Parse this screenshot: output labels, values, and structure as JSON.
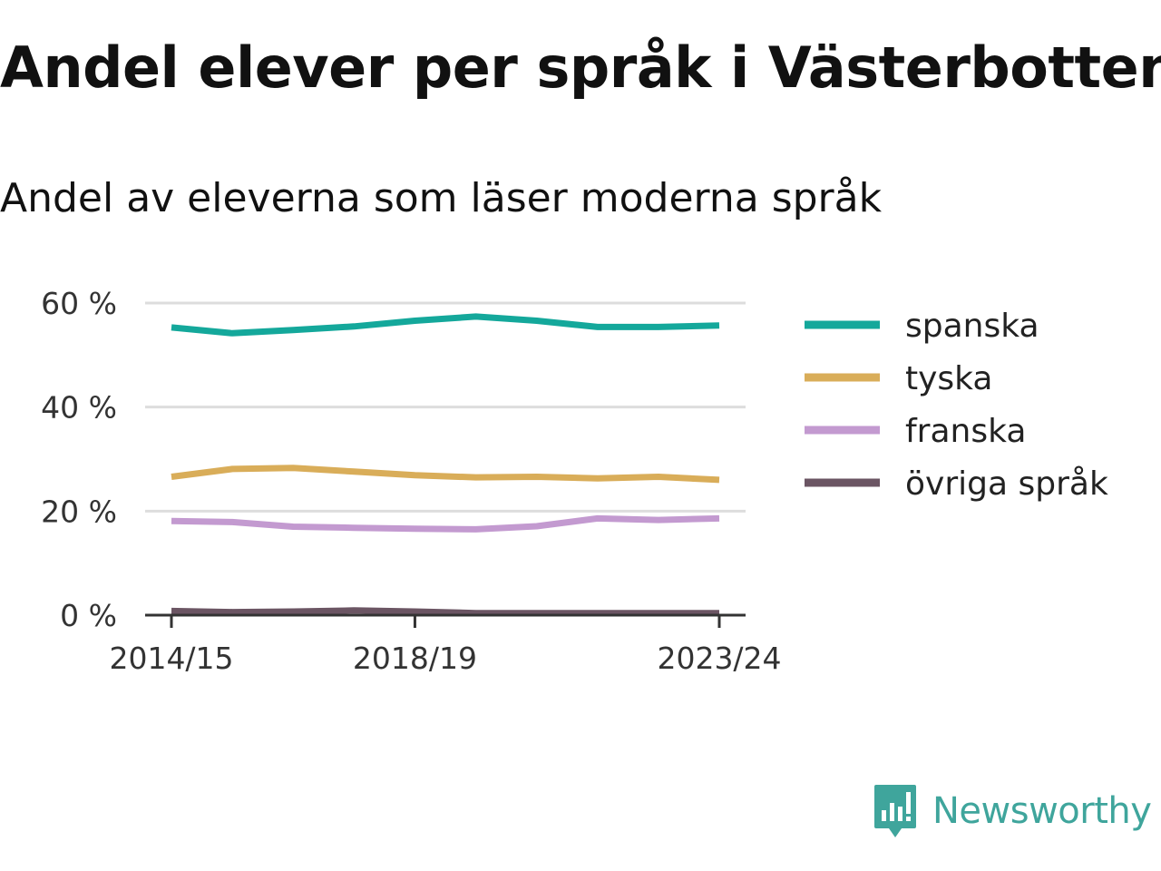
{
  "title": "Andel elever per språk i Västerbotten",
  "subtitle": "Andel av eleverna som läser moderna språk",
  "brand": {
    "name": "Newsworthy",
    "icon": "newsworthy-logo-icon",
    "color": "#3fa59c"
  },
  "chart_data": {
    "type": "line",
    "title": "Andel elever per språk i Västerbotten",
    "subtitle": "Andel av eleverna som läser moderna språk",
    "x": [
      "2014/15",
      "2015/16",
      "2016/17",
      "2017/18",
      "2018/19",
      "2019/20",
      "2020/21",
      "2021/22",
      "2022/23",
      "2023/24"
    ],
    "x_tick_labels": [
      "2014/15",
      "2018/19",
      "2023/24"
    ],
    "ylim": [
      0,
      60
    ],
    "y_ticks": [
      0,
      20,
      40,
      60
    ],
    "y_tick_labels": [
      "0 %",
      "20 %",
      "40 %",
      "60 %"
    ],
    "grid": true,
    "legend_position": "right",
    "series": [
      {
        "name": "spanska",
        "color": "#14a89b",
        "values": [
          55.3,
          54.2,
          54.8,
          55.5,
          56.6,
          57.4,
          56.6,
          55.4,
          55.4,
          55.7
        ]
      },
      {
        "name": "tyska",
        "color": "#d9ad59",
        "values": [
          26.6,
          28.1,
          28.3,
          27.6,
          26.9,
          26.5,
          26.6,
          26.3,
          26.6,
          26.0
        ]
      },
      {
        "name": "franska",
        "color": "#c39ad0",
        "values": [
          18.1,
          17.9,
          17.0,
          16.8,
          16.6,
          16.5,
          17.1,
          18.6,
          18.3,
          18.6
        ]
      },
      {
        "name": "övriga språk",
        "color": "#6b5563",
        "values": [
          0.8,
          0.6,
          0.7,
          0.9,
          0.7,
          0.4,
          0.4,
          0.4,
          0.4,
          0.4
        ]
      }
    ]
  }
}
